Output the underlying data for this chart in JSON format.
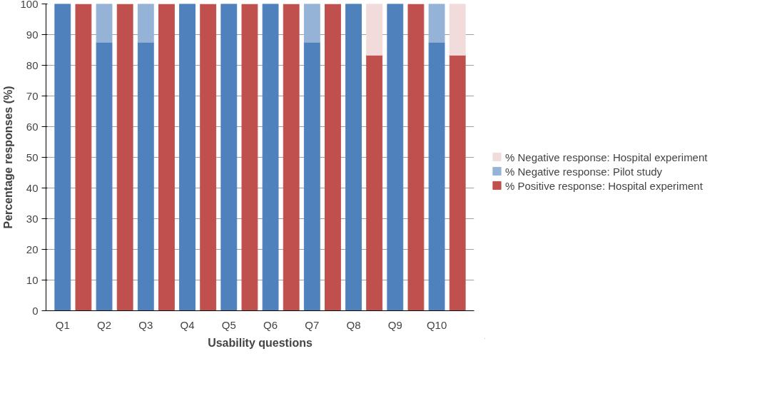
{
  "chart_data": {
    "type": "bar",
    "stacked": true,
    "categories": [
      "Q1",
      null,
      "Q2",
      null,
      "Q3",
      null,
      "Q4",
      null,
      "Q5",
      null,
      "Q6",
      null,
      "Q7",
      null,
      "Q8",
      null,
      "Q9",
      null,
      "Q10",
      null
    ],
    "series": [
      {
        "color": "#4f81bd",
        "values": [
          100,
          null,
          87.5,
          null,
          87.5,
          null,
          100,
          null,
          100,
          null,
          100,
          null,
          87.5,
          null,
          100,
          null,
          100,
          null,
          87.5,
          null
        ]
      },
      {
        "name": "% Positive response: Hospital experiment",
        "color": "#c0504d",
        "values": [
          null,
          100,
          null,
          100,
          null,
          100,
          null,
          100,
          null,
          100,
          null,
          100,
          null,
          100,
          null,
          83.3,
          null,
          100,
          null,
          83.3
        ]
      },
      {
        "name": "% Negative response: Pilot study",
        "color": "#95b3d7",
        "values": [
          0,
          null,
          12.5,
          null,
          12.5,
          null,
          0,
          null,
          0,
          null,
          0,
          null,
          12.5,
          null,
          0,
          null,
          0,
          null,
          12.5,
          null
        ]
      },
      {
        "name": "% Negative response: Hospital experiment",
        "color": "#f2dcdb",
        "values": [
          null,
          0,
          null,
          0,
          null,
          0,
          null,
          0,
          null,
          0,
          null,
          0,
          null,
          0,
          null,
          16.7,
          null,
          0,
          null,
          16.7
        ]
      }
    ],
    "xlabel": "Usability questions",
    "ylabel": "Percentage responses (%)",
    "ylim": [
      0,
      100
    ],
    "yticks": [
      0,
      10,
      20,
      30,
      40,
      50,
      60,
      70,
      80,
      90,
      100
    ],
    "grid": "y",
    "legend": "right"
  }
}
